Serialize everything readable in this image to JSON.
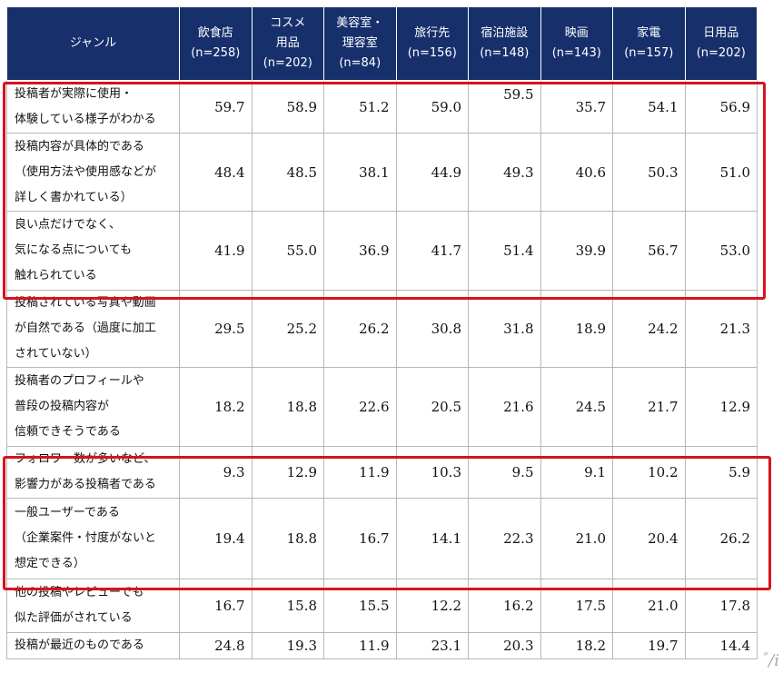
{
  "header": {
    "genre_label": "ジャンル",
    "columns": [
      {
        "name": "飲食店",
        "n": "(n=258)"
      },
      {
        "name": "コスメ 用品",
        "n": "(n=202)"
      },
      {
        "name": "美容室・ 理容室",
        "n": "(n=84)"
      },
      {
        "name": "旅行先",
        "n": "(n=156)"
      },
      {
        "name": "宿泊施設",
        "n": "(n=148)"
      },
      {
        "name": "映画",
        "n": "(n=143)"
      },
      {
        "name": "家電",
        "n": "(n=157)"
      },
      {
        "name": "日用品",
        "n": "(n=202)"
      }
    ],
    "column_lines": [
      [
        "飲食店",
        "(n=258)"
      ],
      [
        "コスメ",
        "用品",
        "(n=202)"
      ],
      [
        "美容室・",
        "理容室",
        "(n=84)"
      ],
      [
        "旅行先",
        "(n=156)"
      ],
      [
        "宿泊施設",
        "(n=148)"
      ],
      [
        "映画",
        "(n=143)"
      ],
      [
        "家電",
        "(n=157)"
      ],
      [
        "日用品",
        "(n=202)"
      ]
    ]
  },
  "rows": [
    {
      "label": [
        "投稿者が実際に使用・",
        "体験している様子がわかる"
      ],
      "values": [
        "59.7",
        "58.9",
        "51.2",
        "59.0",
        "59.5",
        "35.7",
        "54.1",
        "56.9"
      ]
    },
    {
      "label": [
        "投稿内容が具体的である",
        "（使用方法や使用感などが",
        "詳しく書かれている）"
      ],
      "values": [
        "48.4",
        "48.5",
        "38.1",
        "44.9",
        "49.3",
        "40.6",
        "50.3",
        "51.0"
      ]
    },
    {
      "label": [
        "良い点だけでなく、",
        "気になる点についても",
        "触れられている"
      ],
      "values": [
        "41.9",
        "55.0",
        "36.9",
        "41.7",
        "51.4",
        "39.9",
        "56.7",
        "53.0"
      ]
    },
    {
      "label": [
        "投稿されている写真や動画",
        "が自然である（過度に加工",
        "されていない）"
      ],
      "values": [
        "29.5",
        "25.2",
        "26.2",
        "30.8",
        "31.8",
        "18.9",
        "24.2",
        "21.3"
      ]
    },
    {
      "label": [
        "投稿者のプロフィールや",
        "普段の投稿内容が",
        "信頼できそうである"
      ],
      "values": [
        "18.2",
        "18.8",
        "22.6",
        "20.5",
        "21.6",
        "24.5",
        "21.7",
        "12.9"
      ]
    },
    {
      "label": [
        "フォロワー数が多いなど、",
        "影響力がある投稿者である"
      ],
      "values": [
        "9.3",
        "12.9",
        "11.9",
        "10.3",
        "9.5",
        "9.1",
        "10.2",
        "5.9"
      ]
    },
    {
      "label": [
        "一般ユーザーである",
        "（企業案件・忖度がないと",
        "想定できる）"
      ],
      "values": [
        "19.4",
        "18.8",
        "16.7",
        "14.1",
        "22.3",
        "21.0",
        "20.4",
        "26.2"
      ]
    },
    {
      "label": [
        "他の投稿やレビューでも",
        "似た評価がされている"
      ],
      "values": [
        "16.7",
        "15.8",
        "15.5",
        "12.2",
        "16.2",
        "17.5",
        "21.0",
        "17.8"
      ]
    },
    {
      "label": [
        "投稿が最近のものである"
      ],
      "values": [
        "24.8",
        "19.3",
        "11.9",
        "23.1",
        "20.3",
        "18.2",
        "19.7",
        "14.4"
      ]
    }
  ],
  "watermark": "ﾞ/i"
}
